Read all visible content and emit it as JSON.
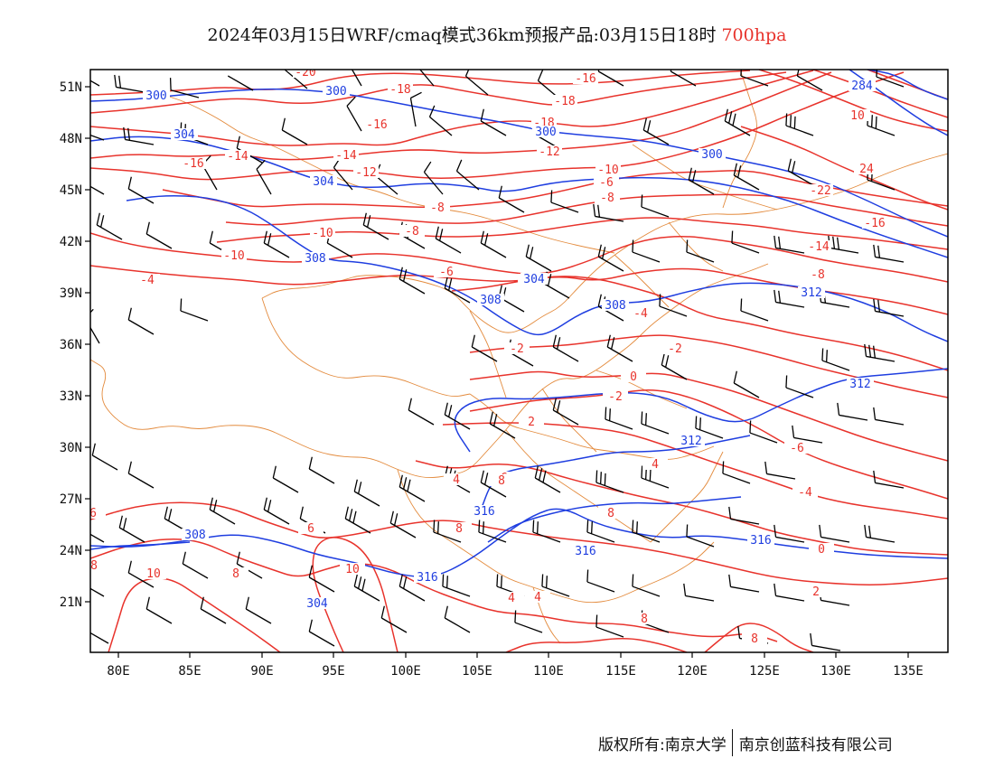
{
  "title": {
    "main": "2024年03月15日WRF/cmaq模式36km预报产品:03月15日18时",
    "level": "700hpa"
  },
  "axes": {
    "lat_labels": [
      "51N",
      "48N",
      "45N",
      "42N",
      "39N",
      "36N",
      "33N",
      "30N",
      "27N",
      "24N",
      "21N"
    ],
    "lon_labels": [
      "80E",
      "85E",
      "90E",
      "95E",
      "100E",
      "105E",
      "110E",
      "115E",
      "120E",
      "125E",
      "130E",
      "135E"
    ]
  },
  "colors": {
    "temperature": "#e8332c",
    "height": "#1f3ee0",
    "boundary": "#e38a3c",
    "wind": "#000000"
  },
  "contour_labels": {
    "temperature": [
      "-20",
      "-18",
      "-16",
      "-18",
      "-16",
      "-14",
      "-16",
      "-18",
      "-14",
      "-12",
      "-12",
      "-10",
      "-8",
      "-6",
      "-10",
      "-8",
      "-10",
      "-8",
      "-6",
      "-4",
      "-4",
      "-4",
      "-2",
      "-2",
      "0",
      "-2",
      "2",
      "4",
      "4",
      "6",
      "8",
      "8",
      "10",
      "6",
      "10",
      "8",
      "6",
      "8",
      "8",
      "10",
      "24",
      "-22",
      "-16",
      "-14",
      "-8",
      "-6",
      "-4",
      "0",
      "2",
      "4",
      "4",
      "8",
      "8"
    ],
    "height": [
      "300",
      "300",
      "304",
      "304",
      "300",
      "300",
      "308",
      "304",
      "308",
      "308",
      "312",
      "312",
      "312",
      "316",
      "316",
      "316",
      "316",
      "308",
      "304",
      "284"
    ]
  },
  "credit": {
    "left": "版权所有:南京大学",
    "right": "南京创蓝科技有限公司"
  }
}
